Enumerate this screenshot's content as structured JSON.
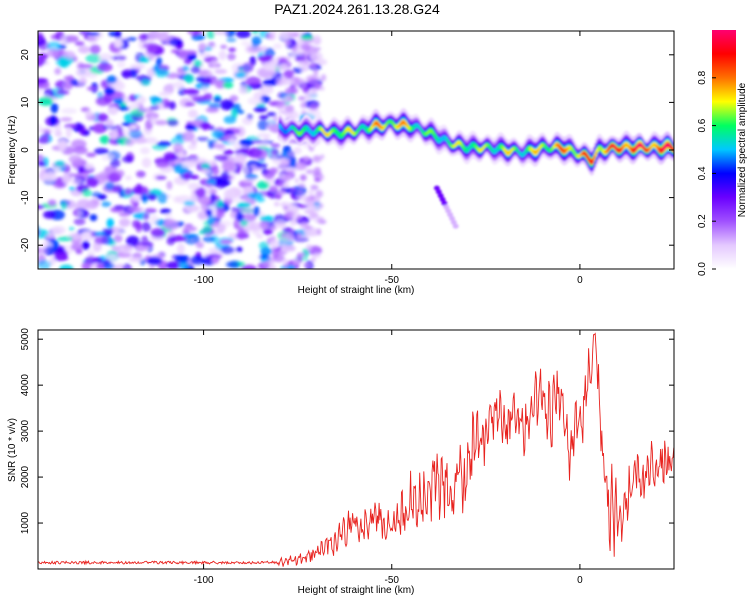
{
  "title": "PAZ1.2024.261.13.28.G24",
  "chart_data": [
    {
      "type": "heatmap",
      "xlabel": "Height of straight line (km)",
      "ylabel": "Frequency (Hz)",
      "xlim": [
        -144,
        25
      ],
      "ylim": [
        -25,
        25
      ],
      "xticks": [
        -100,
        -50,
        0
      ],
      "yticks": [
        -20,
        -10,
        0,
        10,
        20
      ],
      "colorbar": {
        "label": "Normalized spectral amplitude",
        "range": [
          0,
          1
        ],
        "ticks": [
          "0.0",
          "0.2",
          "0.4",
          "0.6",
          "0.8"
        ],
        "colormap": [
          "#ffffff",
          "#e4c8ff",
          "#a050ff",
          "#6a00ff",
          "#0000ff",
          "#00c8ff",
          "#00ff60",
          "#ffff00",
          "#ff7000",
          "#ff0000",
          "#ff0070"
        ]
      },
      "noise_region_x": [
        -144,
        -69
      ],
      "ridge": {
        "x": [
          -80,
          -75,
          -70,
          -65,
          -60,
          -55,
          -50,
          -45,
          -40,
          -35,
          -30,
          -25,
          -20,
          -15,
          -10,
          -5,
          0,
          3,
          5,
          10,
          15,
          20,
          25
        ],
        "frequency": [
          4.5,
          4.0,
          4.0,
          3.5,
          4.0,
          5.0,
          5.5,
          5.0,
          3.5,
          1.5,
          0.5,
          0.5,
          0.0,
          -0.5,
          0.5,
          0.5,
          -1.0,
          -2.0,
          0.0,
          0.5,
          0.5,
          0.5,
          0.5
        ],
        "amplitude": [
          0.5,
          0.55,
          0.6,
          0.7,
          0.6,
          0.7,
          0.75,
          0.65,
          0.55,
          0.6,
          0.65,
          0.6,
          0.65,
          0.6,
          0.7,
          0.75,
          0.8,
          0.85,
          0.8,
          0.9,
          0.95,
          0.9,
          0.95
        ]
      },
      "secondary_feature": {
        "x": [
          -38,
          -33
        ],
        "frequency": [
          -8,
          -16
        ]
      }
    },
    {
      "type": "line",
      "xlabel": "Height of straight line (km)",
      "ylabel": "SNR (10 * v/v)",
      "xlim": [
        -144,
        25
      ],
      "ylim": [
        0,
        5200
      ],
      "xticks": [
        -100,
        -50,
        0
      ],
      "yticks": [
        1000,
        2000,
        3000,
        4000,
        5000
      ],
      "series": [
        {
          "color": "#e8231f",
          "x": [
            -144,
            -130,
            -120,
            -110,
            -100,
            -90,
            -80,
            -75,
            -70,
            -65,
            -62,
            -60,
            -58,
            -55,
            -52,
            -50,
            -48,
            -45,
            -42,
            -40,
            -38,
            -35,
            -32,
            -30,
            -28,
            -25,
            -22,
            -20,
            -18,
            -15,
            -12,
            -10,
            -8,
            -5,
            -3,
            0,
            2,
            3,
            4,
            5,
            6,
            8,
            10,
            15,
            20,
            25
          ],
          "values": [
            120,
            130,
            120,
            115,
            120,
            130,
            140,
            200,
            350,
            650,
            900,
            1100,
            800,
            1200,
            1000,
            900,
            1100,
            1400,
            1300,
            1700,
            2000,
            1500,
            2000,
            2100,
            2600,
            3000,
            3300,
            3100,
            3500,
            3000,
            3600,
            4000,
            3300,
            3900,
            2700,
            3200,
            4000,
            4500,
            5200,
            3800,
            2500,
            1500,
            1000,
            2000,
            2200,
            2500
          ],
          "envelope": [
            150,
            160,
            150,
            140,
            150,
            160,
            200,
            300,
            500,
            900,
            1250,
            1350,
            1150,
            1500,
            1350,
            1200,
            1450,
            2000,
            1900,
            2200,
            2600,
            2100,
            2700,
            2800,
            3300,
            3600,
            3800,
            3600,
            4000,
            3500,
            4300,
            4400,
            4000,
            4300,
            3300,
            3900,
            4500,
            5000,
            5200,
            4400,
            3000,
            2300,
            1700,
            2400,
            2700,
            2800
          ]
        }
      ]
    }
  ]
}
